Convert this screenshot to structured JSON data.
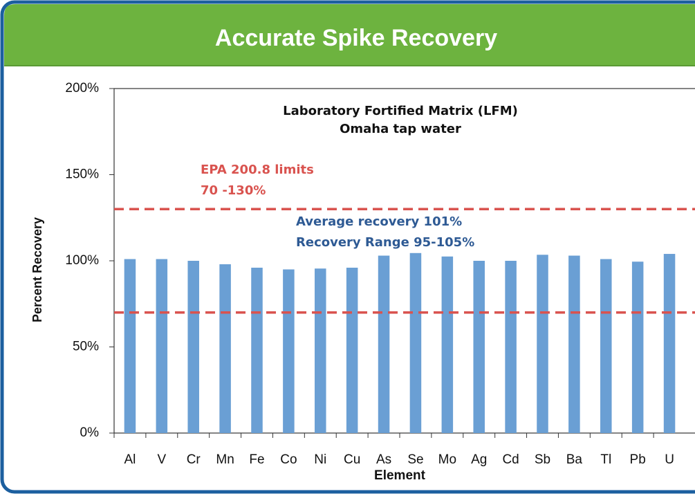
{
  "chart_data": {
    "type": "bar",
    "title": "Accurate Spike Recovery",
    "subtitle": [
      "Laboratory Fortified Matrix (LFM)",
      "Omaha tap water"
    ],
    "annotations": [
      {
        "lines": [
          "EPA 200.8 limits",
          "70 -130%"
        ],
        "color": "#d9534f"
      },
      {
        "lines": [
          "Average recovery 101%",
          "Recovery Range  95-105%"
        ],
        "color": "#2e5a94"
      }
    ],
    "reference_lines": [
      {
        "value": 130,
        "color": "#d9534f"
      },
      {
        "value": 70,
        "color": "#d9534f"
      }
    ],
    "x_label": "Element",
    "y_label": "Percent Recovery",
    "categories": [
      "Al",
      "V",
      "Cr",
      "Mn",
      "Fe",
      "Co",
      "Ni",
      "Cu",
      "As",
      "Se",
      "Mo",
      "Ag",
      "Cd",
      "Sb",
      "Ba",
      "Tl",
      "Pb",
      "U"
    ],
    "values": [
      101,
      101,
      100,
      98,
      96,
      95,
      95.5,
      96,
      103,
      104.5,
      102.5,
      100,
      100,
      103.5,
      103,
      101,
      99.5,
      104
    ],
    "color": "#6a9fd4",
    "ylim": [
      0,
      200
    ],
    "yticks": [
      {
        "value": 0,
        "label": "0%"
      },
      {
        "value": 50,
        "label": "50%"
      },
      {
        "value": 100,
        "label": "100%"
      },
      {
        "value": 150,
        "label": "150%"
      },
      {
        "value": 200,
        "label": "200%"
      }
    ],
    "grid": false
  }
}
